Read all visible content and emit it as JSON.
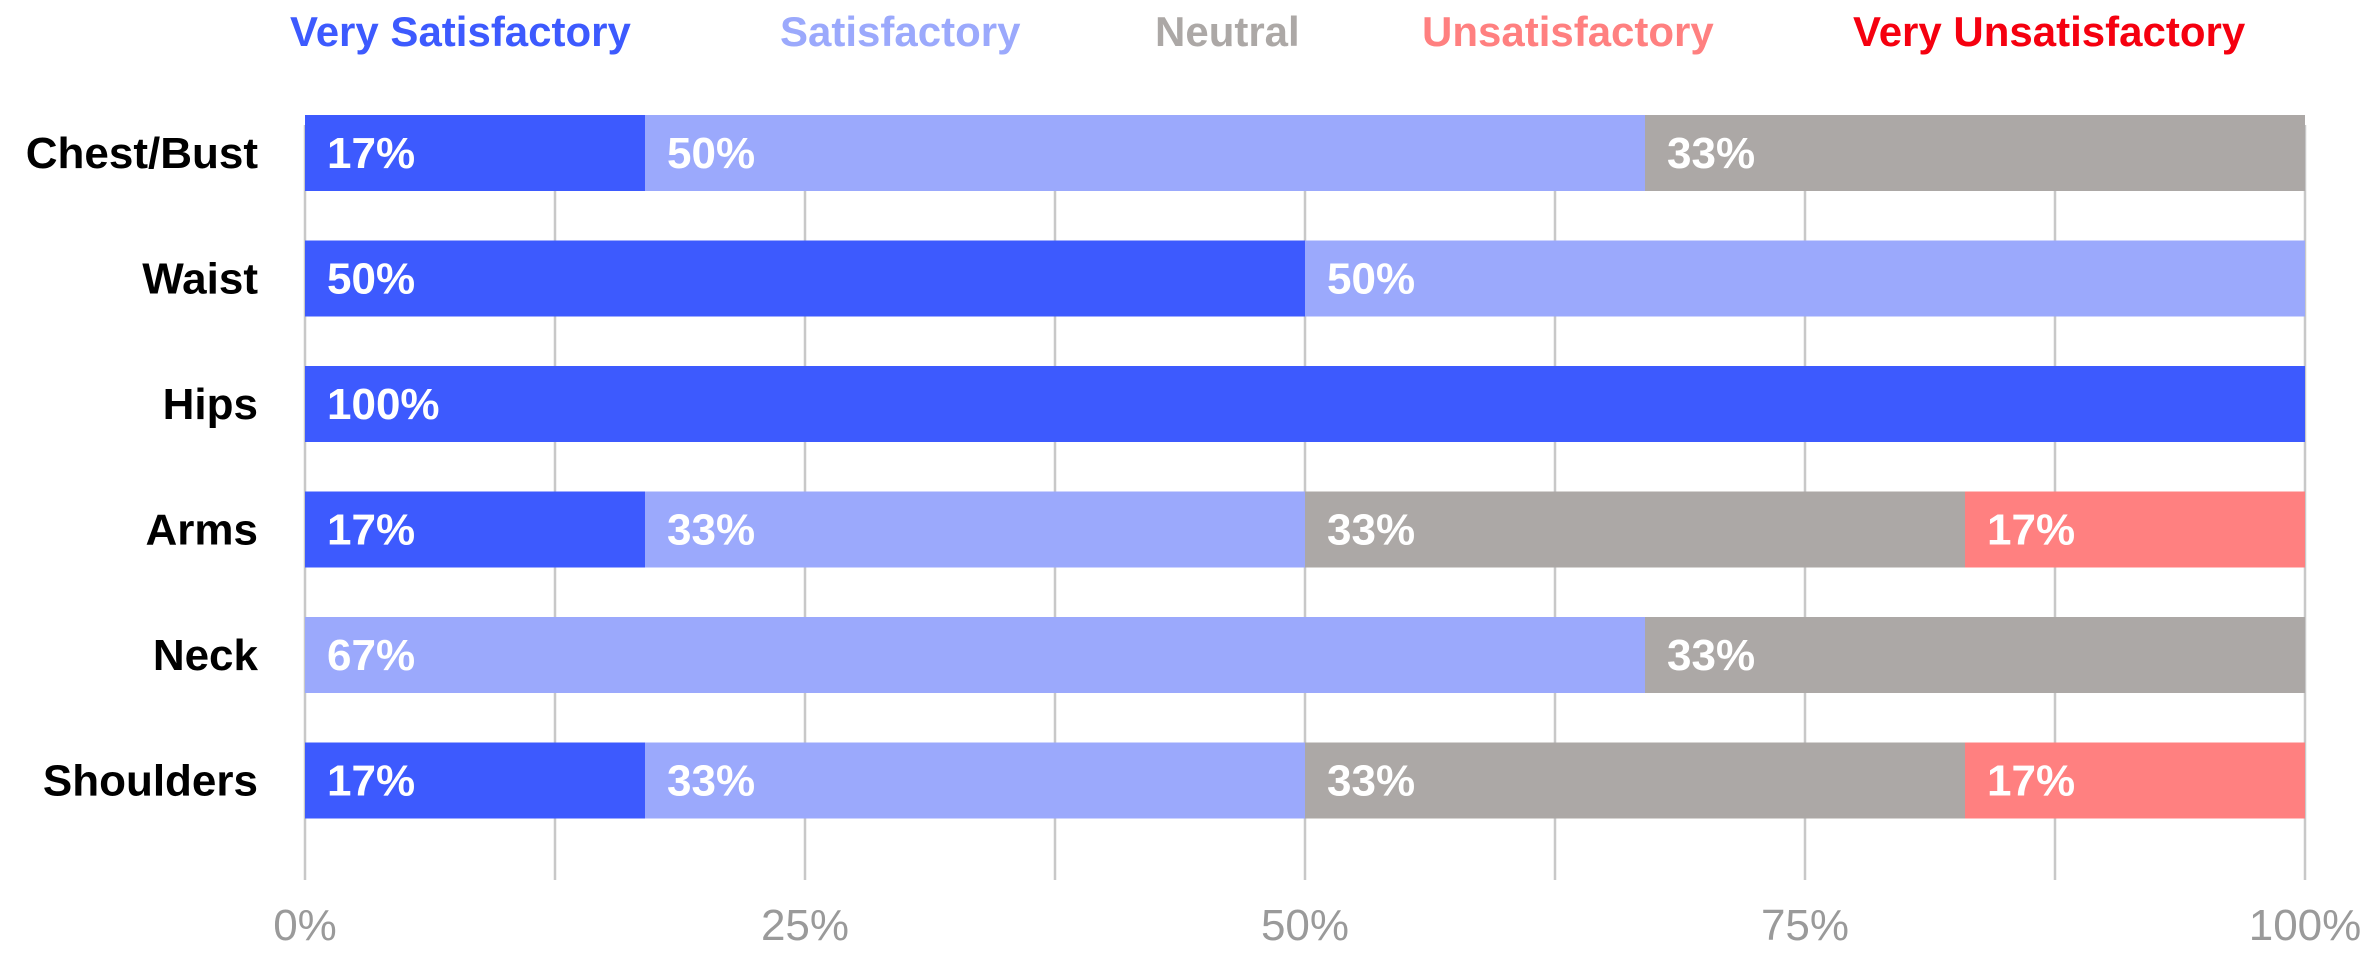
{
  "chart_data": {
    "type": "bar",
    "orientation": "horizontal",
    "stacked": true,
    "title": "",
    "xlabel": "",
    "ylabel": "",
    "xlim": [
      0,
      100
    ],
    "grid": true,
    "legend_position": "top",
    "categories": [
      "Chest/Bust",
      "Waist",
      "Hips",
      "Arms",
      "Neck",
      "Shoulders"
    ],
    "x_ticks": [
      "0%",
      "25%",
      "50%",
      "75%",
      "100%"
    ],
    "series": [
      {
        "name": "Very Satisfactory",
        "color": "#3d5afe",
        "values": [
          17,
          50,
          100,
          17,
          0,
          17
        ],
        "labels": [
          "17%",
          "50%",
          "100%",
          "17%",
          "",
          "17%"
        ]
      },
      {
        "name": "Satisfactory",
        "color": "#9ba9fc",
        "values": [
          50,
          50,
          0,
          33,
          67,
          33
        ],
        "labels": [
          "50%",
          "50%",
          "",
          "33%",
          "67%",
          "33%"
        ]
      },
      {
        "name": "Neutral",
        "color": "#aca8a6",
        "values": [
          33,
          0,
          0,
          33,
          33,
          33
        ],
        "labels": [
          "33%",
          "",
          "",
          "33%",
          "33%",
          "33%"
        ]
      },
      {
        "name": "Unsatisfactory",
        "color": "#ff8080",
        "values": [
          0,
          0,
          0,
          17,
          0,
          17
        ],
        "labels": [
          "",
          "",
          "",
          "17%",
          "",
          "17%"
        ]
      },
      {
        "name": "Very Unsatisfactory",
        "color": "#f5000f",
        "values": [
          0,
          0,
          0,
          0,
          0,
          0
        ],
        "labels": [
          "",
          "",
          "",
          "",
          "",
          ""
        ]
      }
    ]
  }
}
